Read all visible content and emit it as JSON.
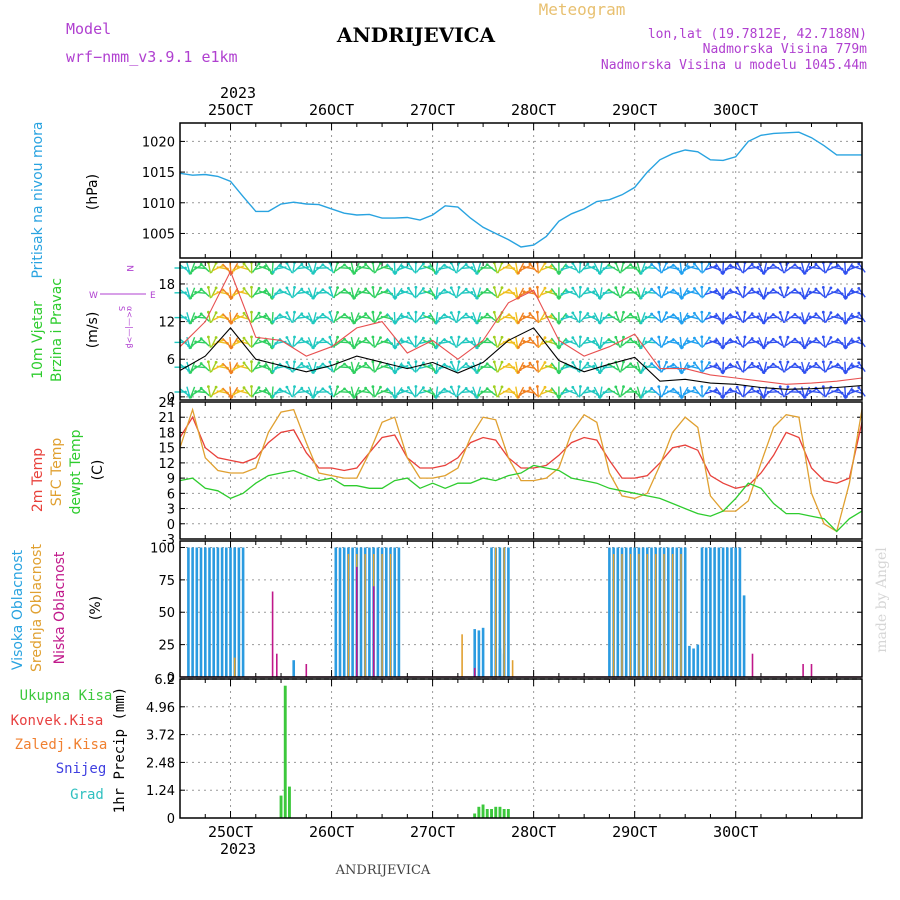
{
  "header": {
    "model_label": "Model",
    "model_name": "wrf−nmm_v3.9.1  e1km",
    "station": "ANDRIJEVICA",
    "meteogram": "Meteogram",
    "lonlat": "lon,lat (19.7812E, 42.7188N)",
    "altitude": "Nadmorska Visina 779m",
    "model_altitude": "Nadmorska Visina u modelu 1045.44m"
  },
  "footer": {
    "station": "ANDRIJEVICA",
    "credit": "made by Angel"
  },
  "colors": {
    "pressure": "#29a3e0",
    "t2m": "#e8413b",
    "sfc": "#e0a030",
    "dewpt": "#2ecc2e",
    "high_cloud": "#2b9be0",
    "mid_cloud": "#e0a030",
    "low_cloud": "#c0188a",
    "total_precip": "#3cc83c",
    "conv_precip": "#e84040",
    "frozen": "#f08030",
    "snow": "#4040e0",
    "hail": "#30c0c0",
    "purple_label": "#b040d0",
    "wind_label": "#2ecc2e"
  },
  "chart_data": [
    {
      "type": "line",
      "panel": "pressure",
      "ylabel_rotated": "Pritisak na nivou mora",
      "unit": "(hPa)",
      "x_start": "2023-10-24T12:00",
      "x_end": "2023-10-31T06:00",
      "top_tick_labels": [
        "25OCT",
        "26OCT",
        "27OCT",
        "28OCT",
        "29OCT",
        "30OCT"
      ],
      "top_year_label": "2023",
      "ylim": [
        1001,
        1023
      ],
      "yticks": [
        1005,
        1010,
        1015,
        1020
      ],
      "grid": true,
      "series": [
        {
          "values_hours": [
            0,
            3,
            6,
            9,
            12,
            15,
            18,
            21,
            24,
            27,
            30,
            33,
            36,
            39,
            42,
            45,
            48,
            51,
            54,
            57,
            60,
            63,
            66,
            69,
            72,
            75,
            78,
            81,
            84,
            87,
            90,
            93,
            96,
            99,
            102,
            105,
            108,
            111,
            114,
            117,
            120,
            123,
            126,
            129,
            132,
            135,
            138,
            141,
            144,
            147,
            150,
            153,
            156,
            159,
            162
          ],
          "values": [
            1014.8,
            1014.5,
            1014.6,
            1014.3,
            1013.5,
            1011.0,
            1008.6,
            1008.6,
            1009.8,
            1010.1,
            1009.8,
            1009.7,
            1009.0,
            1008.3,
            1008.0,
            1008.1,
            1007.5,
            1007.5,
            1007.6,
            1007.2,
            1008.0,
            1009.5,
            1009.3,
            1007.5,
            1006.0,
            1005.0,
            1004.0,
            1002.8,
            1003.1,
            1004.5,
            1007.0,
            1008.2,
            1009.0,
            1010.2,
            1010.5,
            1011.3,
            1012.5,
            1015.0,
            1017.0,
            1018.0,
            1018.6,
            1018.3,
            1017.0,
            1016.9,
            1017.5,
            1020.0,
            1021.0,
            1021.3,
            1021.4,
            1021.5,
            1020.6,
            1019.3,
            1017.8,
            1017.8,
            1017.8
          ]
        }
      ]
    },
    {
      "type": "line",
      "panel": "wind",
      "ylabel_rotated_1": "10m Vjetar",
      "ylabel_rotated_2": "Brzina i Pravac",
      "unit": "(m/s)",
      "compass_n": "N",
      "compass_e": "E",
      "compass_w": "W",
      "compass_s": "S",
      "compass_symbol": "α<—|—>β",
      "ylim": [
        -0.5,
        21.5
      ],
      "yticks": [
        0,
        6,
        12,
        18
      ],
      "grid": true,
      "series": [
        {
          "name": "speed",
          "values_hours": [
            0,
            6,
            12,
            18,
            24,
            30,
            36,
            42,
            48,
            54,
            60,
            66,
            72,
            78,
            84,
            90,
            96,
            102,
            108,
            114,
            120,
            126,
            132,
            138,
            144,
            150,
            156,
            162
          ],
          "values": [
            4.2,
            6.5,
            11.0,
            6.0,
            5.0,
            4.0,
            5.0,
            6.5,
            5.5,
            4.5,
            5.5,
            3.8,
            5.5,
            9.0,
            11.0,
            5.8,
            4.0,
            5.2,
            6.3,
            2.5,
            2.8,
            2.2,
            2.0,
            1.5,
            1.2,
            1.3,
            1.5,
            1.8
          ]
        },
        {
          "name": "gust",
          "values_hours": [
            0,
            6,
            12,
            18,
            24,
            30,
            36,
            42,
            48,
            54,
            60,
            66,
            72,
            78,
            84,
            90,
            96,
            102,
            108,
            114,
            120,
            126,
            132,
            138,
            144,
            150,
            156,
            162
          ],
          "values": [
            8.0,
            12.0,
            20.0,
            9.5,
            9.0,
            6.5,
            8.0,
            11.0,
            12.0,
            7.0,
            9.0,
            6.0,
            9.0,
            15.0,
            17.0,
            9.0,
            6.5,
            8.0,
            10.0,
            4.5,
            4.5,
            3.5,
            3.0,
            2.5,
            2.0,
            2.2,
            2.5,
            3.0
          ]
        }
      ]
    },
    {
      "type": "line",
      "panel": "temperature",
      "ylabel_rotated_t2m": "2m Temp",
      "ylabel_rotated_sfc": "SFC Temp",
      "ylabel_rotated_dew": "dewpt Temp",
      "unit": "(C)",
      "ylim": [
        -3,
        24
      ],
      "yticks": [
        -3,
        0,
        3,
        6,
        9,
        12,
        15,
        18,
        21,
        24
      ],
      "grid": true,
      "series": [
        {
          "name": "2m Temp",
          "values_hours": [
            0,
            3,
            6,
            9,
            12,
            15,
            18,
            21,
            24,
            27,
            30,
            33,
            36,
            39,
            42,
            45,
            48,
            51,
            54,
            57,
            60,
            63,
            66,
            69,
            72,
            75,
            78,
            81,
            84,
            87,
            90,
            93,
            96,
            99,
            102,
            105,
            108,
            111,
            114,
            117,
            120,
            123,
            126,
            129,
            132,
            135,
            138,
            141,
            144,
            147,
            150,
            153,
            156,
            159,
            162
          ],
          "values": [
            17,
            21,
            15,
            13,
            12.5,
            12,
            13,
            16,
            18,
            18.5,
            14,
            11,
            11,
            10.5,
            11,
            14,
            17,
            17.5,
            13,
            11,
            11,
            11.5,
            13,
            16,
            17,
            16.5,
            13,
            11,
            11,
            11.5,
            13.5,
            16,
            17,
            16.5,
            12.5,
            9,
            9,
            9.5,
            12,
            15,
            15.5,
            14.5,
            9.5,
            8,
            7,
            7.5,
            10,
            13.5,
            18,
            17,
            11,
            8.5,
            8,
            9,
            20
          ]
        },
        {
          "name": "SFC Temp",
          "values_hours": [
            0,
            3,
            6,
            9,
            12,
            15,
            18,
            21,
            24,
            27,
            30,
            33,
            36,
            39,
            42,
            45,
            48,
            51,
            54,
            57,
            60,
            63,
            66,
            69,
            72,
            75,
            78,
            81,
            84,
            87,
            90,
            93,
            96,
            99,
            102,
            105,
            108,
            111,
            114,
            117,
            120,
            123,
            126,
            129,
            132,
            135,
            138,
            141,
            144,
            147,
            150,
            153,
            156,
            159,
            162
          ],
          "values": [
            15,
            22.5,
            13,
            10.5,
            10,
            10,
            11,
            18,
            22,
            22.5,
            16,
            10,
            9.5,
            9,
            9,
            14,
            20,
            21,
            13,
            9,
            9,
            9.5,
            11,
            17,
            21,
            20.5,
            13,
            8.5,
            8.5,
            9,
            11,
            18,
            21.5,
            20,
            10,
            5.5,
            5,
            6,
            11.5,
            18,
            21,
            19,
            5.5,
            2.5,
            2.5,
            4.5,
            12,
            19,
            21.5,
            21,
            6,
            0,
            -1.5,
            8,
            22.5
          ]
        },
        {
          "name": "dewpt Temp",
          "values_hours": [
            0,
            3,
            6,
            9,
            12,
            15,
            18,
            21,
            24,
            27,
            30,
            33,
            36,
            39,
            42,
            45,
            48,
            51,
            54,
            57,
            60,
            63,
            66,
            69,
            72,
            75,
            78,
            81,
            84,
            87,
            90,
            93,
            96,
            99,
            102,
            105,
            108,
            111,
            114,
            117,
            120,
            123,
            126,
            129,
            132,
            135,
            138,
            141,
            144,
            147,
            150,
            153,
            156,
            159,
            162
          ],
          "values": [
            8.5,
            9,
            7,
            6.5,
            5,
            6,
            8,
            9.5,
            10,
            10.5,
            9.5,
            8.5,
            9,
            7.5,
            7.5,
            7,
            7,
            8.5,
            9,
            7,
            8,
            7,
            8,
            8,
            9,
            8.5,
            9.5,
            10,
            11.5,
            11,
            10.5,
            9,
            8.5,
            8,
            7,
            6.5,
            6,
            5.5,
            5,
            4,
            3,
            2,
            1.5,
            2.5,
            5,
            8,
            7,
            4,
            2,
            2,
            1.5,
            1,
            -1.5,
            1,
            2.5
          ]
        }
      ]
    },
    {
      "type": "bar",
      "panel": "cloud",
      "ylabel_rotated_high": "Visoka Oblacnost",
      "ylabel_rotated_mid": "Srednja Oblacnost",
      "ylabel_rotated_low": "Niska Oblacnost",
      "unit": "(%)",
      "ylim": [
        0,
        105
      ],
      "yticks": [
        0,
        25,
        50,
        75,
        100
      ],
      "grid": true,
      "series": [
        {
          "name": "high",
          "blocks": [
            [
              2,
              15,
              100
            ],
            [
              37,
              52,
              100
            ],
            [
              74,
              78,
              100
            ],
            [
              102,
              120,
              100
            ],
            [
              124,
              133,
              100
            ]
          ],
          "singles": [
            [
              27,
              13
            ],
            [
              70,
              37
            ],
            [
              71,
              36
            ],
            [
              72,
              38
            ],
            [
              76,
              22
            ],
            [
              77,
              18
            ],
            [
              121,
              24
            ],
            [
              122,
              22
            ],
            [
              123,
              25
            ],
            [
              134,
              63
            ]
          ]
        },
        {
          "name": "mid",
          "blocks": [
            [
              40,
              50,
              95
            ],
            [
              75,
              77,
              100
            ],
            [
              103,
              119,
              95
            ]
          ],
          "singles": [
            [
              13,
              15
            ],
            [
              67,
              33
            ],
            [
              79,
              13
            ]
          ]
        },
        {
          "name": "low",
          "singles": [
            [
              22,
              66
            ],
            [
              23,
              18
            ],
            [
              30,
              10
            ],
            [
              42,
              85
            ],
            [
              46,
              70
            ],
            [
              70,
              7
            ],
            [
              136,
              18
            ],
            [
              148,
              10
            ],
            [
              150,
              10
            ],
            [
              177,
              5
            ],
            [
              178,
              65
            ],
            [
              182,
              48
            ],
            [
              197,
              9
            ]
          ]
        }
      ]
    },
    {
      "type": "bar",
      "panel": "precip",
      "legend": [
        "Ukupna Kisa",
        "Konvek.Kisa",
        "Zaledj.Kisa",
        "Snijeg",
        "Grad"
      ],
      "ylabel_rotated": "1hr Precip (mm)",
      "ylim": [
        0,
        6.2
      ],
      "yticks": [
        0,
        1.24,
        2.48,
        3.72,
        4.96,
        6.2
      ],
      "ytick_labels": [
        "0",
        "1.24",
        "2.48",
        "3.72",
        "4.96",
        "6.2"
      ],
      "bottom_tick_labels": [
        "25OCT",
        "26OCT",
        "27OCT",
        "28OCT",
        "29OCT",
        "30OCT"
      ],
      "bottom_year_label": "2023",
      "grid": true,
      "series": [
        {
          "name": "Ukupna Kisa",
          "values_hours": [
            24,
            25,
            26,
            27,
            70,
            71,
            72,
            73,
            74,
            75,
            76,
            77,
            78
          ],
          "values": [
            1.0,
            5.9,
            1.4,
            0.0,
            0.2,
            0.5,
            0.6,
            0.4,
            0.4,
            0.5,
            0.5,
            0.4,
            0.4
          ]
        }
      ]
    }
  ]
}
